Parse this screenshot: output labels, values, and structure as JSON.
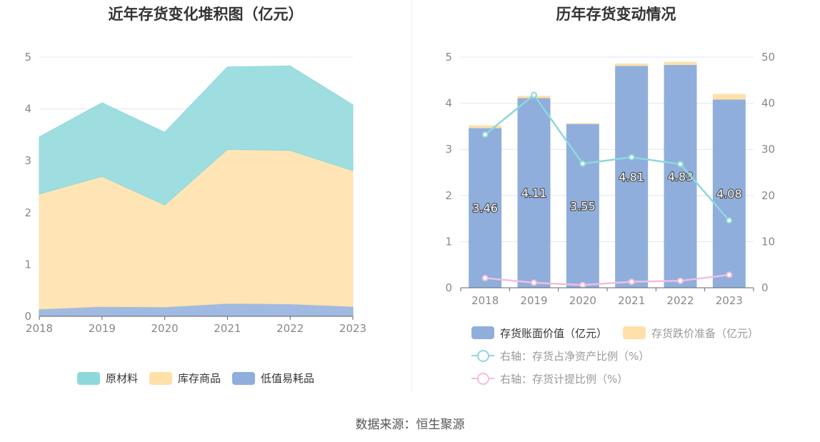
{
  "source_note": "数据来源：恒生聚源",
  "colors": {
    "raw_materials": "#8ED8DB",
    "finished_goods": "#FFE0A8",
    "low_value": "#8FAEDC",
    "book_value": "#8FAEDC",
    "impairment": "#FFE0A8",
    "ratio_net_assets": "#8ED8DB",
    "provision_ratio": "#F0BFE0"
  },
  "chart_data": [
    {
      "type": "area",
      "title": "近年存货变化堆积图（亿元）",
      "x": [
        "2018",
        "2019",
        "2020",
        "2021",
        "2022",
        "2023"
      ],
      "y_ticks": [
        "0",
        "1",
        "2",
        "3",
        "4",
        "5"
      ],
      "ylim": [
        0,
        5
      ],
      "stacked": true,
      "series": [
        {
          "name": "低值易耗品",
          "color_key": "low_value",
          "values": [
            0.14,
            0.19,
            0.18,
            0.25,
            0.24,
            0.19
          ]
        },
        {
          "name": "库存商品",
          "color_key": "finished_goods",
          "values": [
            2.22,
            2.51,
            1.97,
            2.97,
            2.96,
            2.62
          ]
        },
        {
          "name": "原材料",
          "color_key": "raw_materials",
          "values": [
            1.1,
            1.42,
            1.4,
            1.59,
            1.63,
            1.27
          ]
        }
      ],
      "legend": [
        "原材料",
        "库存商品",
        "低值易耗品"
      ],
      "legend_position": "bottom"
    },
    {
      "type": "bar",
      "title": "历年存货变动情况",
      "categories": [
        "2018",
        "2019",
        "2020",
        "2021",
        "2022",
        "2023"
      ],
      "y_left_ticks": [
        "0",
        "1",
        "2",
        "3",
        "4",
        "5"
      ],
      "y_right_ticks": [
        "0",
        "10",
        "20",
        "30",
        "40",
        "50"
      ],
      "ylim_left": [
        0,
        5
      ],
      "ylim_right": [
        0,
        50
      ],
      "stacked": true,
      "series": [
        {
          "name": "存货账面价值（亿元）",
          "color_key": "book_value",
          "axis": "left",
          "values": [
            3.46,
            4.11,
            3.55,
            4.81,
            4.83,
            4.08
          ],
          "labels": [
            "3.46",
            "4.11",
            "3.55",
            "4.81",
            "4.83",
            "4.08"
          ]
        },
        {
          "name": "存货跌价准备（亿元）",
          "color_key": "impairment",
          "axis": "left",
          "values": [
            0.06,
            0.05,
            0.02,
            0.05,
            0.07,
            0.12
          ]
        },
        {
          "name": "右轴：存货占净资产比例（%）",
          "type": "line",
          "color_key": "ratio_net_assets",
          "axis": "right",
          "values": [
            33.2,
            41.8,
            26.9,
            28.3,
            26.8,
            14.6
          ]
        },
        {
          "name": "右轴：存货计提比例（%）",
          "type": "line",
          "color_key": "provision_ratio",
          "axis": "right",
          "values": [
            2.1,
            1.1,
            0.6,
            1.3,
            1.5,
            2.8
          ]
        }
      ],
      "legend_position": "bottom"
    }
  ]
}
